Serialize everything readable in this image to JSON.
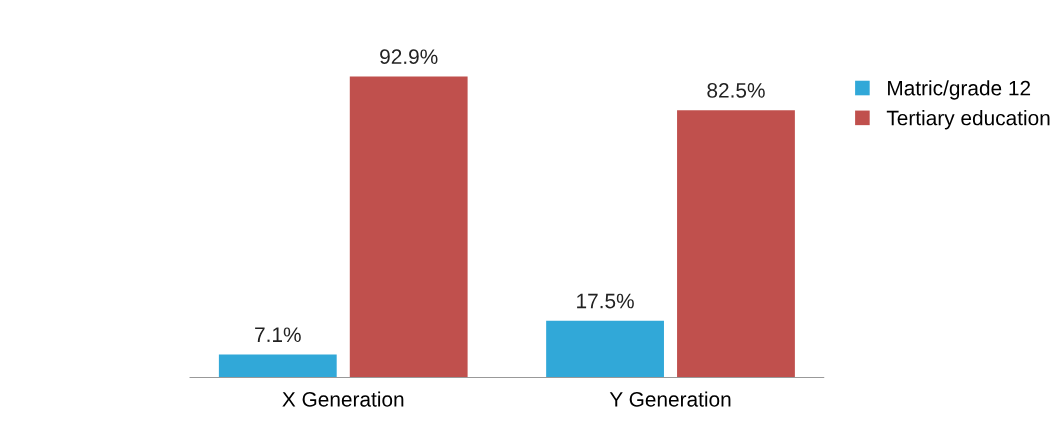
{
  "chart_data": {
    "type": "bar",
    "categories": [
      "X Generation",
      "Y Generation"
    ],
    "series": [
      {
        "name": "Matric/grade 12",
        "color": "#31a8d8",
        "values": [
          7.1,
          17.5
        ],
        "value_labels": [
          "7.1%",
          "17.5%"
        ]
      },
      {
        "name": "Tertiary education",
        "color": "#c0504d",
        "values": [
          92.9,
          82.5
        ],
        "value_labels": [
          "92.9%",
          "82.5%"
        ]
      }
    ],
    "legend": "top right",
    "grid": false
  }
}
